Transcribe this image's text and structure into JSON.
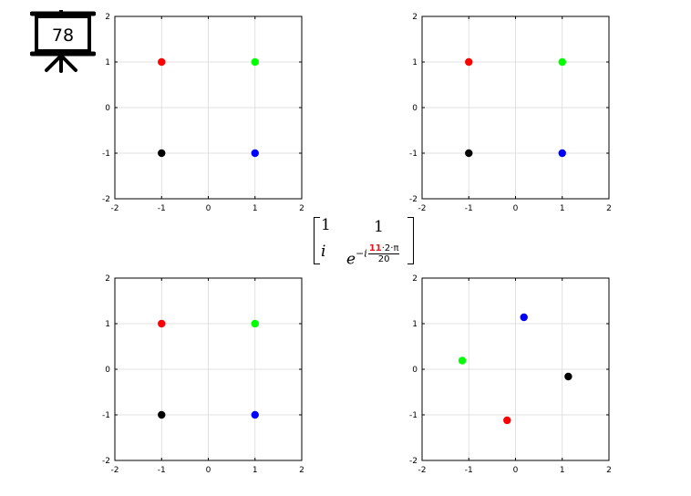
{
  "slide_number": "78",
  "matrix": {
    "r1c1": "1",
    "r1c2": "1",
    "r2c1": "i",
    "r2c2_base": "e",
    "r2c2_sign": "−",
    "r2c2_i": "i",
    "r2c2_highlight": "11",
    "r2c2_num_rest": "·2·π",
    "r2c2_den": "20"
  },
  "colors": {
    "red": "#ff0000",
    "green": "#00ff00",
    "blue": "#0000ff",
    "black": "#000000",
    "highlight": "#e8141b"
  },
  "chart_data": [
    {
      "type": "scatter",
      "xlim": [
        -2,
        2
      ],
      "ylim": [
        -2,
        2
      ],
      "xticks": [
        "-2",
        "-1",
        "0",
        "1",
        "2"
      ],
      "yticks": [
        "2",
        "1",
        "0",
        "-1",
        "-2"
      ],
      "grid": true,
      "points": [
        {
          "x": -1,
          "y": 1,
          "color": "#ff0000"
        },
        {
          "x": 1,
          "y": 1,
          "color": "#00ff00"
        },
        {
          "x": -1,
          "y": -1,
          "color": "#000000"
        },
        {
          "x": 1,
          "y": -1,
          "color": "#0000ff"
        }
      ]
    },
    {
      "type": "scatter",
      "xlim": [
        -2,
        2
      ],
      "ylim": [
        -2,
        2
      ],
      "xticks": [
        "-2",
        "-1",
        "0",
        "1",
        "2"
      ],
      "yticks": [
        "2",
        "1",
        "0",
        "-1",
        "-2"
      ],
      "grid": true,
      "points": [
        {
          "x": -1,
          "y": 1,
          "color": "#ff0000"
        },
        {
          "x": 1,
          "y": 1,
          "color": "#00ff00"
        },
        {
          "x": -1,
          "y": -1,
          "color": "#000000"
        },
        {
          "x": 1,
          "y": -1,
          "color": "#0000ff"
        }
      ]
    },
    {
      "type": "scatter",
      "xlim": [
        -2,
        2
      ],
      "ylim": [
        -2,
        2
      ],
      "xticks": [
        "-2",
        "-1",
        "0",
        "1",
        "2"
      ],
      "yticks": [
        "2",
        "1",
        "0",
        "-1",
        "-2"
      ],
      "grid": true,
      "points": [
        {
          "x": -1,
          "y": 1,
          "color": "#ff0000"
        },
        {
          "x": 1,
          "y": 1,
          "color": "#00ff00"
        },
        {
          "x": -1,
          "y": -1,
          "color": "#000000"
        },
        {
          "x": 1,
          "y": -1,
          "color": "#0000ff"
        }
      ]
    },
    {
      "type": "scatter",
      "xlim": [
        -2,
        2
      ],
      "ylim": [
        -2,
        2
      ],
      "xticks": [
        "-2",
        "-1",
        "0",
        "1",
        "2"
      ],
      "yticks": [
        "2",
        "1",
        "0",
        "-1",
        "-2"
      ],
      "grid": true,
      "points": [
        {
          "x": 0.18,
          "y": 1.14,
          "color": "#0000ff"
        },
        {
          "x": -1.14,
          "y": 0.19,
          "color": "#00ff00"
        },
        {
          "x": 1.13,
          "y": -0.16,
          "color": "#000000"
        },
        {
          "x": -0.18,
          "y": -1.12,
          "color": "#ff0000"
        }
      ]
    }
  ]
}
